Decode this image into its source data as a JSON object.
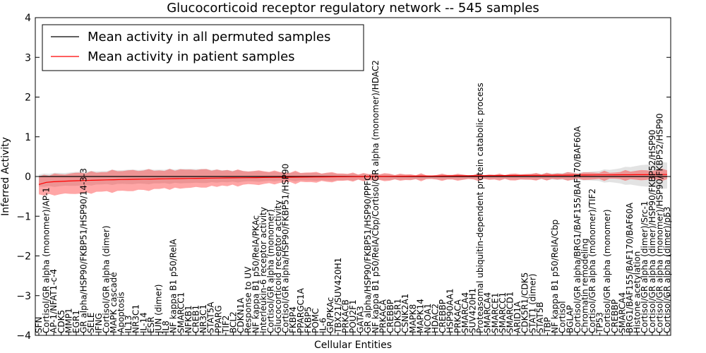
{
  "chart_data": {
    "type": "line",
    "title": "Glucocorticoid receptor regulatory network -- 545 samples",
    "xlabel": "Cellular Entities",
    "ylabel": "Inferred Activity",
    "ylim": [
      -4,
      4
    ],
    "yticks": [
      -4,
      -3,
      -2,
      -1,
      0,
      1,
      2,
      3,
      4
    ],
    "grid": false,
    "legend_position": "top-left",
    "series": [
      {
        "name": "Mean activity in all permuted samples",
        "color": "#000000",
        "start": 0.0,
        "end": 0.0
      },
      {
        "name": "Mean activity in patient samples",
        "color": "#ff0000",
        "start": -0.2,
        "end": 0.05
      }
    ],
    "band_colors": {
      "patient": "#ff0000",
      "permuted": "#b0b0b0"
    },
    "patient_band": {
      "upper": [
        0.0,
        0.12,
        0.15,
        0.1,
        0.05,
        0.02,
        0.03,
        0.07,
        0.15
      ],
      "lower": [
        -0.45,
        -0.35,
        -0.25,
        -0.15,
        -0.08,
        -0.06,
        -0.06,
        -0.05,
        -0.06
      ]
    },
    "permuted_band": {
      "upper": [
        0.05,
        0.15,
        0.18,
        0.1,
        0.05,
        0.03,
        0.04,
        0.1,
        0.35
      ],
      "lower": [
        -0.25,
        -0.18,
        -0.15,
        -0.1,
        -0.08,
        -0.06,
        -0.06,
        -0.08,
        -0.3
      ]
    },
    "categories": [
      "SFN",
      "Cortisol/GR alpha (monomer)/AP-1",
      "AP-1/NFAT1-c-4",
      "CDK5",
      "MMP1",
      "EGR1",
      "GR alpha/HSP90/FKBP51/HSP90/14-3-3",
      "SELE",
      "IFNG",
      "Cortisol/GR alpha (dimer)",
      "MAPK cascade",
      "Apoptosis",
      "IL13",
      "NR3C1",
      "IL-14",
      "ESR",
      "JUN (dimer)",
      "IL8",
      "NF kappa B1 p50/RelA",
      "SMARCC1",
      "NFKB1",
      "CREB1",
      "NR3C1",
      "STAT5A",
      "PPARG",
      "TIF2",
      "BCL2",
      "CDKN1A",
      "Response to UV",
      "NF kappa B1 p50/RelA/PKAc",
      "Interleukin-6 receptor activity",
      "Cortisol/GR alpha (monomer)",
      "Glucocorticoid receptor activity",
      "Cortisol/GR alpha/HSP90/FKBP51/HSP90",
      "FKBP4",
      "PPARGC1A",
      "FKBP5",
      "POMC",
      "IL-6",
      "GR/PKAc",
      "TBX21/SUV420H1",
      "PRKACB",
      "POU2F1",
      "GATA3",
      "GR alpha/HSP90/FKBP51/HSP90/PPFC",
      "NF kappa B1 p50/RelA/Cbp/Cortisol/GR alpha (monomer)/HDAC2",
      "PRKACA",
      "CREBBP",
      "CDK5R1",
      "CSNK2A1",
      "MAPK8",
      "MAPK14",
      "NCOA1",
      "HDAC2",
      "CREBBP",
      "HSP90AA1",
      "PRKACA",
      "SMARCA4",
      "SUV420H1",
      "Proteasomal ubiquitin-dependent protein catabolic process",
      "SMARCA4",
      "SMARCE1",
      "SMARCC1",
      "SMARCD1",
      "ARID1A",
      "CDK5R1/CDK5",
      "STAT1 (dimer)",
      "STAT5B",
      "TBP",
      "NF kappa B1 p50/RelA/Cbp",
      "Cortisol",
      "BGLAP",
      "Cortisol/GR alpha/BRG1/BAF155/BAF170/BAF60A",
      "Chromatin remodeling",
      "Cortisol/GR alpha (monomer)/TIF2",
      "TP53",
      "Cortisol/GR alpha (monomer)",
      "CREBBP",
      "SMARCA4",
      "BRG1/BAF155/BAF170/BAF60A",
      "Histone acetylation",
      "Cortisol/GR alpha (dimer)/Src-1",
      "Cortisol/GR alpha (dimer)/HSP90/FKBP52/HSP90",
      "Cortisol/GR alpha (monomer)/HSP90/FKBP52/HSP90",
      "Cortisol/GR alpha (dimer)/p53"
    ]
  }
}
